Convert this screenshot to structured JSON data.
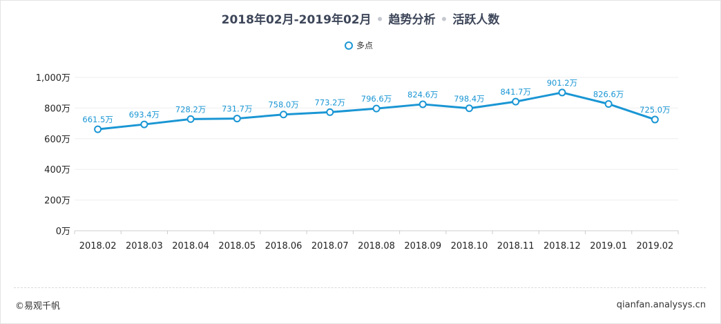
{
  "title": {
    "period": "2018年02月-2019年02月",
    "separator": "•",
    "analysis": "趋势分析",
    "metric": "活跃人数"
  },
  "legend": {
    "series_name": "多点"
  },
  "footer": {
    "copyright": "©易观千帆",
    "site": "qianfan.analysys.cn"
  },
  "colors": {
    "series": "#1a96d4",
    "grid": "#eeeeee",
    "axis": "#cccccc"
  },
  "chart_data": {
    "type": "line",
    "x": [
      "2018.02",
      "2018.03",
      "2018.04",
      "2018.05",
      "2018.06",
      "2018.07",
      "2018.08",
      "2018.09",
      "2018.10",
      "2018.11",
      "2018.12",
      "2019.01",
      "2019.02"
    ],
    "series": [
      {
        "name": "多点",
        "values": [
          661.5,
          693.4,
          728.2,
          731.7,
          758.0,
          773.2,
          796.6,
          824.6,
          798.4,
          841.7,
          901.2,
          826.6,
          725.0
        ],
        "labels": [
          "661.5万",
          "693.4万",
          "728.2万",
          "731.7万",
          "758.0万",
          "773.2万",
          "796.6万",
          "824.6万",
          "798.4万",
          "841.7万",
          "901.2万",
          "826.6万",
          "725.0万"
        ]
      }
    ],
    "ylim": [
      0,
      1000
    ],
    "yticks": [
      0,
      200,
      400,
      600,
      800,
      1000
    ],
    "ytick_labels": [
      "0万",
      "200万",
      "400万",
      "600万",
      "800万",
      "1,000万"
    ],
    "grid": true,
    "legend_position": "top-center"
  }
}
